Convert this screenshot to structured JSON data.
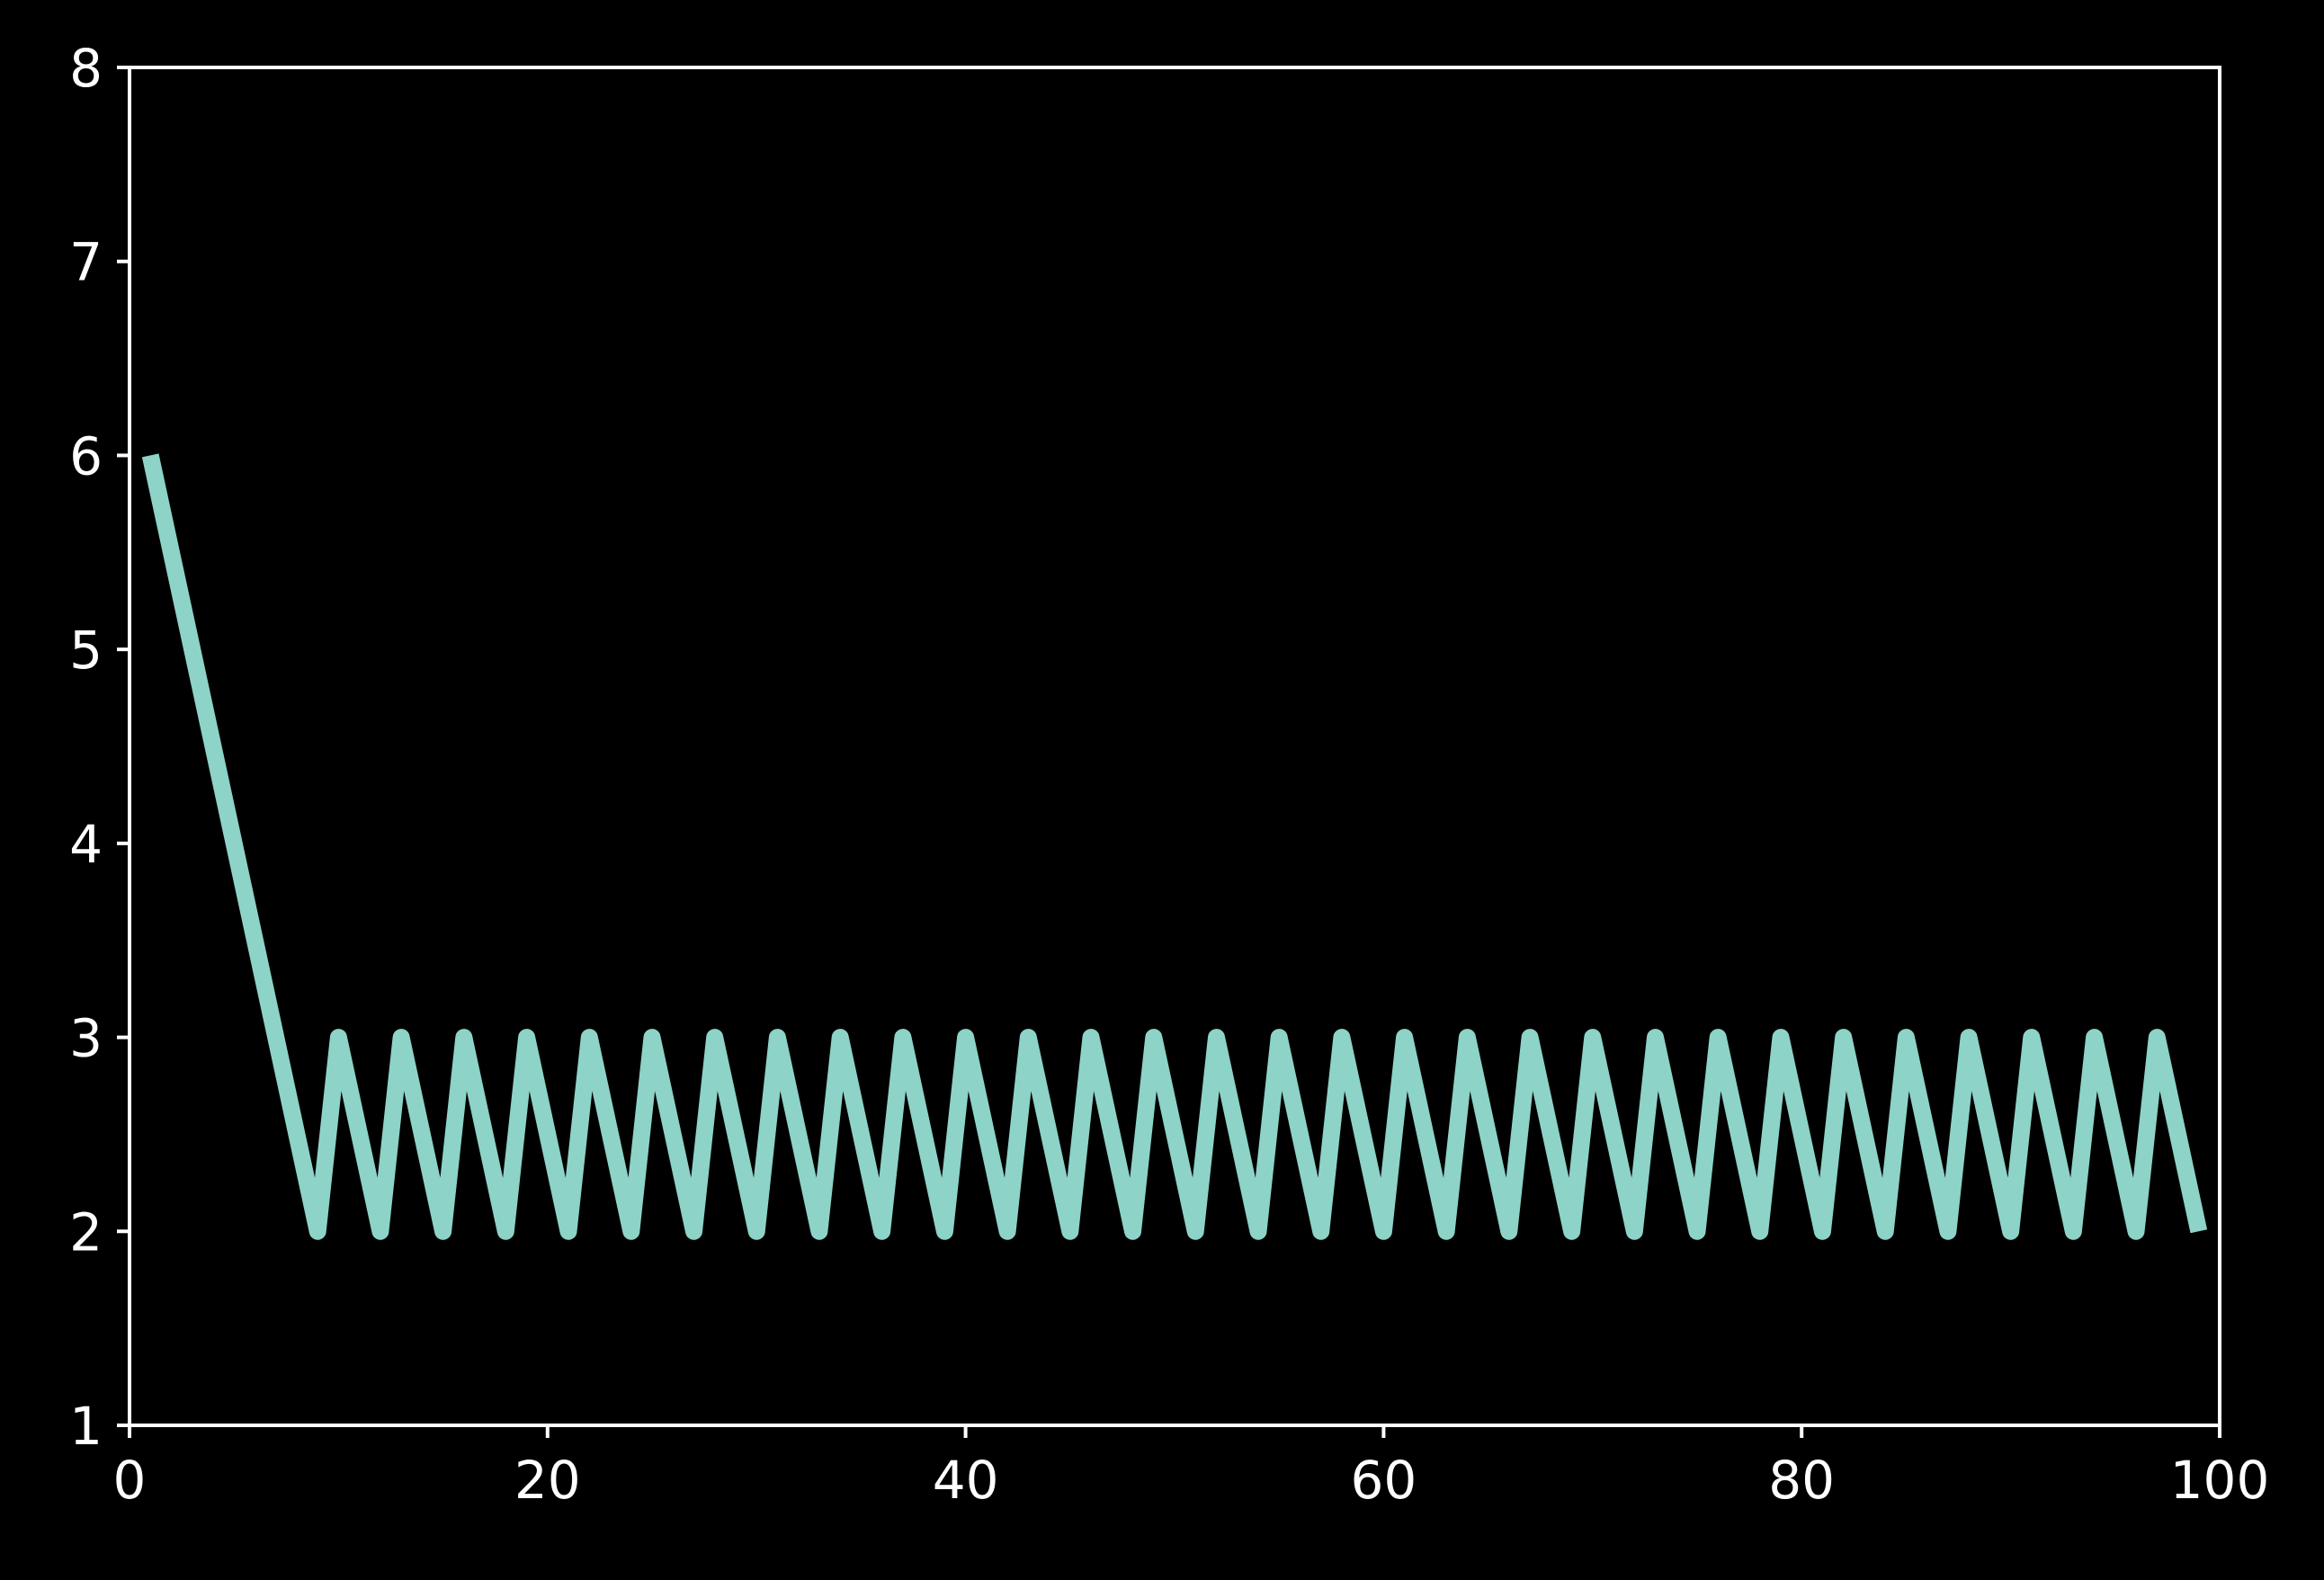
{
  "chart_data": {
    "type": "line",
    "title": "",
    "xlabel": "",
    "ylabel": "",
    "xlim": [
      0,
      100
    ],
    "ylim": [
      1,
      8
    ],
    "x_ticks": [
      0,
      20,
      40,
      60,
      80,
      100
    ],
    "y_ticks": [
      1,
      2,
      3,
      4,
      5,
      6,
      7,
      8
    ],
    "grid": false,
    "legend": "none",
    "colors": {
      "background": "#000000",
      "axes": "#ffffff",
      "text": "#ffffff",
      "line": "#8dd3c7"
    },
    "series": [
      {
        "x": [
          1,
          9,
          10,
          12,
          13,
          15,
          16,
          18,
          19,
          21,
          22,
          24,
          25,
          27,
          28,
          30,
          31,
          33,
          34,
          36,
          37,
          39,
          40,
          42,
          43,
          45,
          46,
          48,
          49,
          51,
          52,
          54,
          55,
          57,
          58,
          60,
          61,
          63,
          64,
          66,
          67,
          69,
          70,
          72,
          73,
          75,
          76,
          78,
          79,
          81,
          82,
          84,
          85,
          87,
          88,
          90,
          91,
          93,
          94,
          96,
          97,
          99
        ],
        "y": [
          6,
          2,
          3,
          2,
          3,
          2,
          3,
          2,
          3,
          2,
          3,
          2,
          3,
          2,
          3,
          2,
          3,
          2,
          3,
          2,
          3,
          2,
          3,
          2,
          3,
          2,
          3,
          2,
          3,
          2,
          3,
          2,
          3,
          2,
          3,
          2,
          3,
          2,
          3,
          2,
          3,
          2,
          3,
          2,
          3,
          2,
          3,
          2,
          3,
          2,
          3,
          2,
          3,
          2,
          3,
          2,
          3,
          2,
          3,
          2,
          3,
          2
        ]
      }
    ]
  }
}
